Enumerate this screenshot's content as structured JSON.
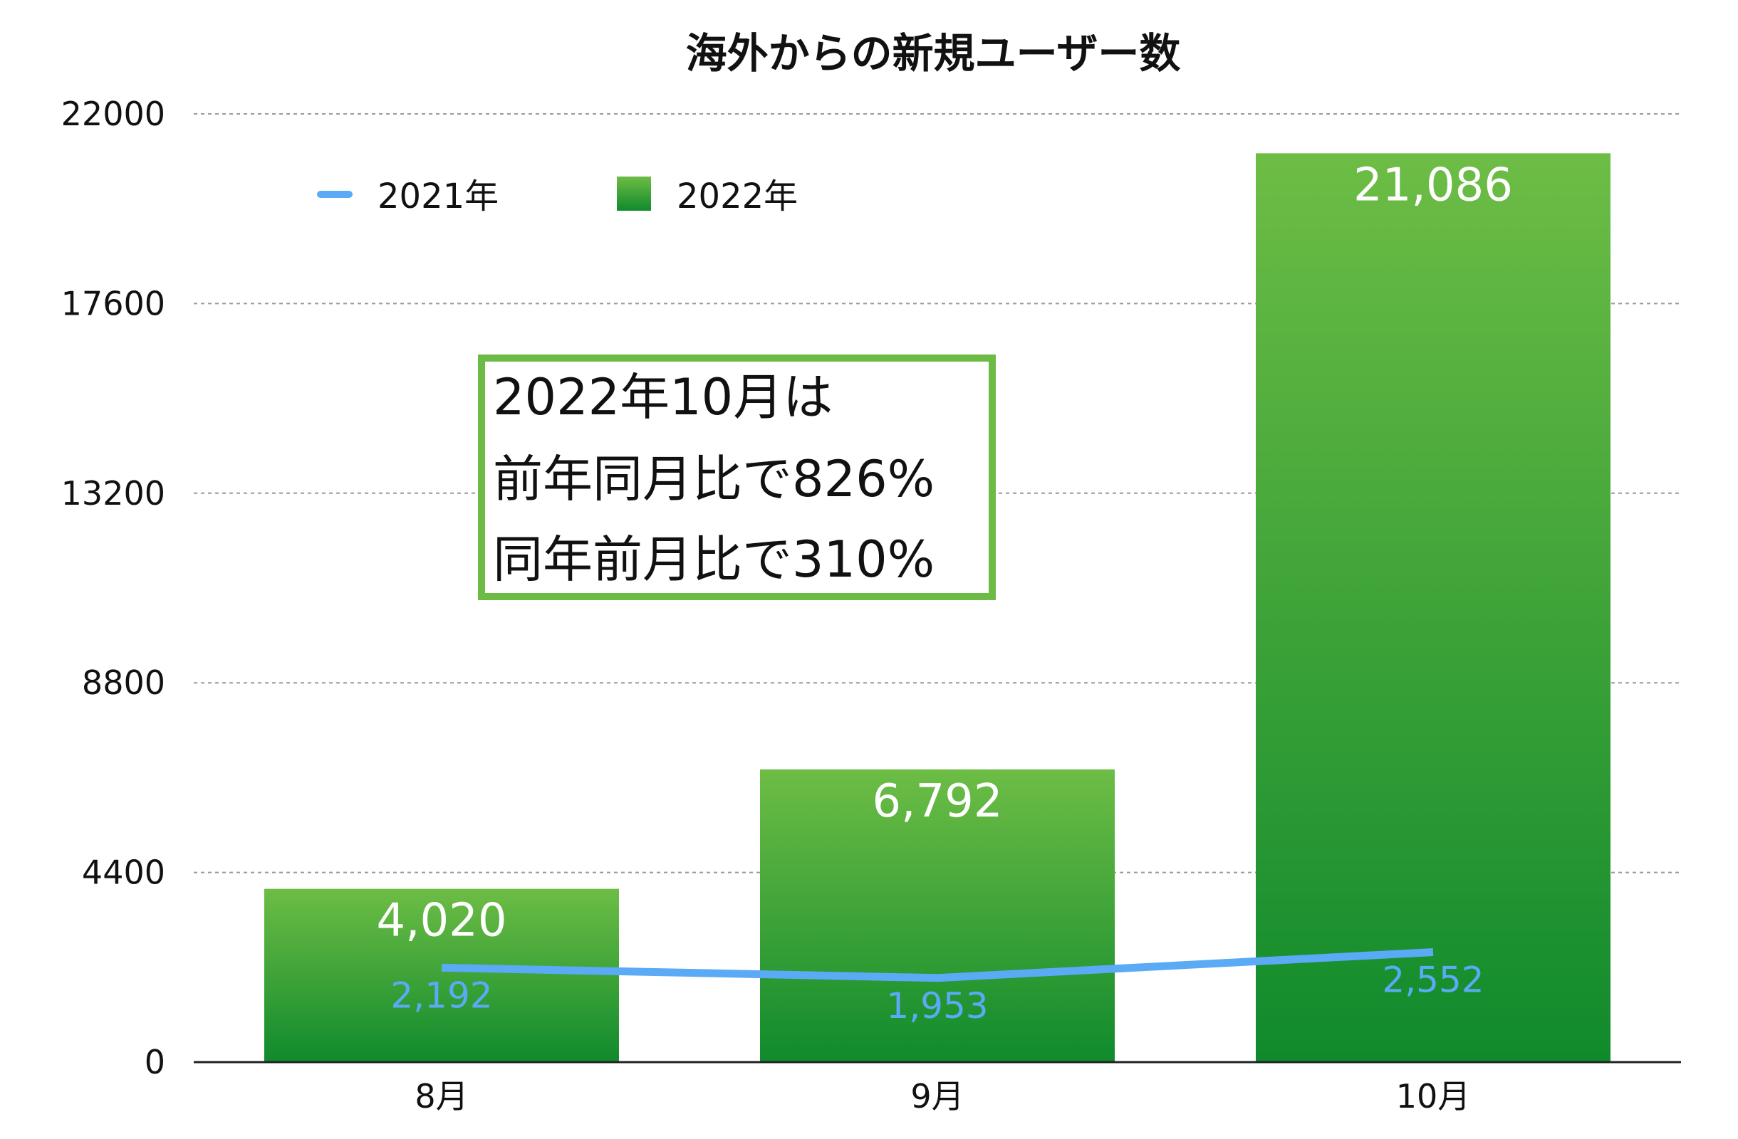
{
  "chart_data": {
    "type": "bar",
    "title": "海外からの新規ユーザー数",
    "categories": [
      "8月",
      "9月",
      "10月"
    ],
    "series": [
      {
        "name": "2022年",
        "type": "bar",
        "values": [
          4020,
          6792,
          21086
        ],
        "labels": [
          "4,020",
          "6,792",
          "21,086"
        ],
        "color": "#2aa535"
      },
      {
        "name": "2021年",
        "type": "line",
        "values": [
          2192,
          1953,
          2552
        ],
        "labels": [
          "2,192",
          "1,953",
          "2,552"
        ],
        "color": "#5aaaf5"
      }
    ],
    "ylim": [
      0,
      22000
    ],
    "yticks": [
      0,
      4400,
      8800,
      13200,
      17600,
      22000
    ],
    "ytick_labels": [
      "0",
      "4400",
      "8800",
      "13200",
      "17600",
      "22000"
    ],
    "grid": true,
    "legend_position": "top-left",
    "annotation": [
      "2022年10月は",
      "前年同月比で826%",
      "同年前月比で310%"
    ]
  }
}
